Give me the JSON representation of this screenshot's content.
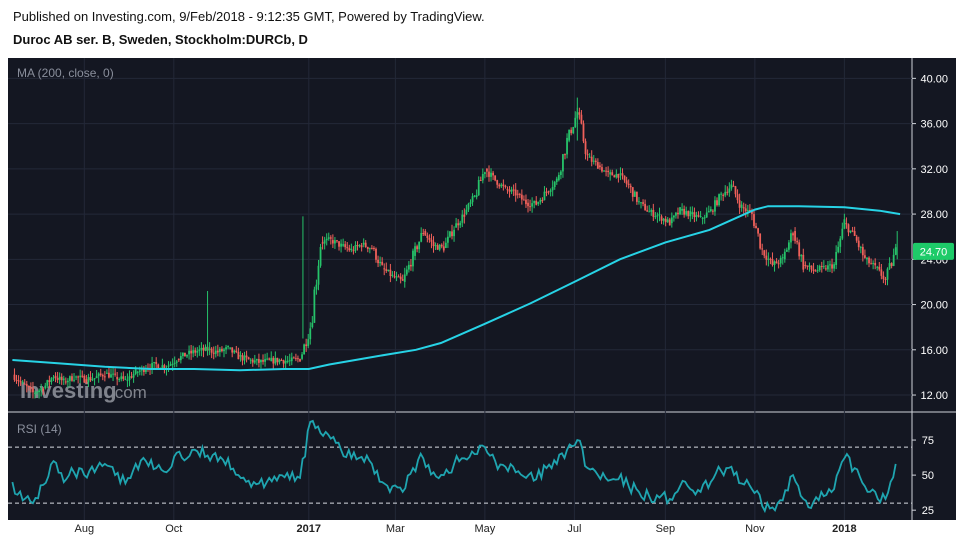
{
  "header": {
    "published_line": "Published on Investing.com, 9/Feb/2018 - 9:12:35 GMT, Powered by TradingView.",
    "instrument_line": "Duroc AB ser. B, Sweden, Stockholm:DURCb, D"
  },
  "watermark": {
    "brand": "Investing",
    "suffix": ".com"
  },
  "colors": {
    "background": "#141722",
    "up_candle": "#26c36a",
    "down_candle": "#f0605a",
    "ma_line": "#27d3e6",
    "rsi_line": "#1fa5b0",
    "price_badge": "#1ecb69",
    "grid": "#232838"
  },
  "chart_data": [
    {
      "type": "candlestick",
      "title": "MA (200, close, 0)",
      "series": [
        {
          "name": "Price",
          "points": [
            [
              "2016-06-13",
              13.8
            ],
            [
              "2016-06-20",
              13.0
            ],
            [
              "2016-06-27",
              12.2
            ],
            [
              "2016-07-04",
              12.6
            ],
            [
              "2016-07-11",
              13.7
            ],
            [
              "2016-07-18",
              13.2
            ],
            [
              "2016-07-25",
              13.6
            ],
            [
              "2016-08-01",
              13.4
            ],
            [
              "2016-08-08",
              13.5
            ],
            [
              "2016-08-15",
              13.9
            ],
            [
              "2016-08-22",
              13.6
            ],
            [
              "2016-08-29",
              13.3
            ],
            [
              "2016-09-05",
              14.0
            ],
            [
              "2016-09-12",
              14.4
            ],
            [
              "2016-09-19",
              14.7
            ],
            [
              "2016-09-26",
              14.5
            ],
            [
              "2016-10-03",
              15.2
            ],
            [
              "2016-10-10",
              15.6
            ],
            [
              "2016-10-17",
              15.9
            ],
            [
              "2016-10-24",
              16.0
            ],
            [
              "2016-10-31",
              15.8
            ],
            [
              "2016-11-07",
              16.1
            ],
            [
              "2016-11-14",
              15.4
            ],
            [
              "2016-11-21",
              15.1
            ],
            [
              "2016-11-28",
              14.9
            ],
            [
              "2016-12-05",
              15.0
            ],
            [
              "2016-12-12",
              15.1
            ],
            [
              "2016-12-19",
              15.0
            ],
            [
              "2016-12-26",
              15.2
            ],
            [
              "2017-01-02",
              18.0
            ],
            [
              "2017-01-09",
              25.5
            ],
            [
              "2017-01-16",
              25.7
            ],
            [
              "2017-01-23",
              25.2
            ],
            [
              "2017-01-30",
              24.8
            ],
            [
              "2017-02-06",
              25.3
            ],
            [
              "2017-02-13",
              25.0
            ],
            [
              "2017-02-20",
              23.2
            ],
            [
              "2017-02-27",
              22.5
            ],
            [
              "2017-03-06",
              22.0
            ],
            [
              "2017-03-13",
              24.3
            ],
            [
              "2017-03-20",
              26.5
            ],
            [
              "2017-03-27",
              25.2
            ],
            [
              "2017-04-03",
              25.0
            ],
            [
              "2017-04-10",
              26.8
            ],
            [
              "2017-04-17",
              28.0
            ],
            [
              "2017-04-24",
              29.5
            ],
            [
              "2017-05-01",
              32.0
            ],
            [
              "2017-05-08",
              31.0
            ],
            [
              "2017-05-15",
              30.2
            ],
            [
              "2017-05-22",
              29.8
            ],
            [
              "2017-05-29",
              29.0
            ],
            [
              "2017-06-05",
              28.9
            ],
            [
              "2017-06-12",
              30.0
            ],
            [
              "2017-06-19",
              31.0
            ],
            [
              "2017-06-26",
              34.5
            ],
            [
              "2017-07-03",
              37.0
            ],
            [
              "2017-07-10",
              33.0
            ],
            [
              "2017-07-17",
              32.3
            ],
            [
              "2017-07-24",
              31.5
            ],
            [
              "2017-07-31",
              31.5
            ],
            [
              "2017-08-07",
              30.5
            ],
            [
              "2017-08-14",
              29.0
            ],
            [
              "2017-08-21",
              28.2
            ],
            [
              "2017-08-28",
              27.8
            ],
            [
              "2017-09-04",
              27.2
            ],
            [
              "2017-09-11",
              28.3
            ],
            [
              "2017-09-18",
              28.0
            ],
            [
              "2017-09-25",
              27.6
            ],
            [
              "2017-10-02",
              28.3
            ],
            [
              "2017-10-09",
              29.7
            ],
            [
              "2017-10-16",
              30.5
            ],
            [
              "2017-10-23",
              28.6
            ],
            [
              "2017-10-30",
              28.0
            ],
            [
              "2017-11-06",
              24.8
            ],
            [
              "2017-11-13",
              23.5
            ],
            [
              "2017-11-20",
              24.0
            ],
            [
              "2017-11-27",
              26.5
            ],
            [
              "2017-12-04",
              23.5
            ],
            [
              "2017-12-11",
              23.0
            ],
            [
              "2017-12-18",
              23.2
            ],
            [
              "2017-12-25",
              23.5
            ],
            [
              "2018-01-01",
              27.2
            ],
            [
              "2018-01-08",
              26.0
            ],
            [
              "2018-01-15",
              24.0
            ],
            [
              "2018-01-22",
              23.3
            ],
            [
              "2018-01-29",
              22.2
            ],
            [
              "2018-02-05",
              24.7
            ]
          ]
        },
        {
          "name": "MA (200, close, 0)",
          "points": [
            [
              "2016-06-13",
              15.1
            ],
            [
              "2016-07-15",
              14.8
            ],
            [
              "2016-08-15",
              14.5
            ],
            [
              "2016-09-15",
              14.3
            ],
            [
              "2016-10-15",
              14.3
            ],
            [
              "2016-11-15",
              14.2
            ],
            [
              "2016-12-15",
              14.3
            ],
            [
              "2017-01-01",
              14.3
            ],
            [
              "2017-01-15",
              14.7
            ],
            [
              "2017-02-15",
              15.4
            ],
            [
              "2017-03-15",
              16.0
            ],
            [
              "2017-04-01",
              16.6
            ],
            [
              "2017-05-01",
              18.3
            ],
            [
              "2017-06-01",
              20.1
            ],
            [
              "2017-07-01",
              22.0
            ],
            [
              "2017-08-01",
              24.0
            ],
            [
              "2017-09-01",
              25.5
            ],
            [
              "2017-10-01",
              26.6
            ],
            [
              "2017-11-01",
              28.4
            ],
            [
              "2017-11-10",
              28.7
            ],
            [
              "2017-12-01",
              28.7
            ],
            [
              "2018-01-01",
              28.6
            ],
            [
              "2018-01-25",
              28.3
            ],
            [
              "2018-02-08",
              28.0
            ]
          ]
        }
      ],
      "last_price": "24.70",
      "y_ticks": [
        "40.00",
        "36.00",
        "32.00",
        "28.00",
        "24.00",
        "20.00",
        "16.00",
        "12.00"
      ],
      "ylim": [
        10.5,
        41.8
      ],
      "x_ticks": [
        "Aug",
        "Oct",
        "2017",
        "Mar",
        "May",
        "Jul",
        "Sep",
        "Nov",
        "2018"
      ],
      "x_tick_dates": [
        "2016-08-01",
        "2016-10-01",
        "2017-01-01",
        "2017-03-01",
        "2017-05-01",
        "2017-07-01",
        "2017-09-01",
        "2017-11-01",
        "2018-01-01"
      ],
      "grid": true
    },
    {
      "type": "line",
      "title": "RSI (14)",
      "series": [
        {
          "name": "RSI (14)",
          "points": [
            [
              "2016-06-13",
              45
            ],
            [
              "2016-06-20",
              32
            ],
            [
              "2016-06-27",
              30
            ],
            [
              "2016-07-04",
              43
            ],
            [
              "2016-07-11",
              60
            ],
            [
              "2016-07-18",
              45
            ],
            [
              "2016-07-25",
              52
            ],
            [
              "2016-08-01",
              50
            ],
            [
              "2016-08-08",
              52
            ],
            [
              "2016-08-15",
              58
            ],
            [
              "2016-08-22",
              50
            ],
            [
              "2016-08-29",
              44
            ],
            [
              "2016-09-05",
              58
            ],
            [
              "2016-09-12",
              60
            ],
            [
              "2016-09-19",
              55
            ],
            [
              "2016-09-26",
              52
            ],
            [
              "2016-10-03",
              66
            ],
            [
              "2016-10-10",
              62
            ],
            [
              "2016-10-17",
              67
            ],
            [
              "2016-10-24",
              64
            ],
            [
              "2016-10-31",
              60
            ],
            [
              "2016-11-07",
              62
            ],
            [
              "2016-11-14",
              50
            ],
            [
              "2016-11-21",
              46
            ],
            [
              "2016-11-28",
              44
            ],
            [
              "2016-12-05",
              48
            ],
            [
              "2016-12-12",
              50
            ],
            [
              "2016-12-19",
              47
            ],
            [
              "2016-12-26",
              48
            ],
            [
              "2017-01-02",
              88
            ],
            [
              "2017-01-09",
              80
            ],
            [
              "2017-01-16",
              76
            ],
            [
              "2017-01-23",
              68
            ],
            [
              "2017-01-30",
              62
            ],
            [
              "2017-02-06",
              63
            ],
            [
              "2017-02-13",
              58
            ],
            [
              "2017-02-20",
              45
            ],
            [
              "2017-02-27",
              42
            ],
            [
              "2017-03-06",
              38
            ],
            [
              "2017-03-13",
              55
            ],
            [
              "2017-03-20",
              62
            ],
            [
              "2017-03-27",
              52
            ],
            [
              "2017-04-03",
              50
            ],
            [
              "2017-04-10",
              58
            ],
            [
              "2017-04-17",
              62
            ],
            [
              "2017-04-24",
              65
            ],
            [
              "2017-05-01",
              70
            ],
            [
              "2017-05-08",
              60
            ],
            [
              "2017-05-15",
              56
            ],
            [
              "2017-05-22",
              52
            ],
            [
              "2017-05-29",
              48
            ],
            [
              "2017-06-05",
              47
            ],
            [
              "2017-06-12",
              55
            ],
            [
              "2017-06-19",
              58
            ],
            [
              "2017-06-26",
              68
            ],
            [
              "2017-07-03",
              75
            ],
            [
              "2017-07-10",
              55
            ],
            [
              "2017-07-17",
              50
            ],
            [
              "2017-07-24",
              46
            ],
            [
              "2017-07-31",
              47
            ],
            [
              "2017-08-07",
              42
            ],
            [
              "2017-08-14",
              38
            ],
            [
              "2017-08-21",
              35
            ],
            [
              "2017-08-28",
              34
            ],
            [
              "2017-09-04",
              33
            ],
            [
              "2017-09-11",
              42
            ],
            [
              "2017-09-18",
              40
            ],
            [
              "2017-09-25",
              38
            ],
            [
              "2017-10-02",
              45
            ],
            [
              "2017-10-09",
              53
            ],
            [
              "2017-10-16",
              56
            ],
            [
              "2017-10-23",
              44
            ],
            [
              "2017-10-30",
              40
            ],
            [
              "2017-11-06",
              28
            ],
            [
              "2017-11-13",
              27
            ],
            [
              "2017-11-20",
              32
            ],
            [
              "2017-11-27",
              50
            ],
            [
              "2017-12-04",
              33
            ],
            [
              "2017-12-11",
              31
            ],
            [
              "2017-12-18",
              35
            ],
            [
              "2017-12-25",
              40
            ],
            [
              "2018-01-01",
              62
            ],
            [
              "2018-01-08",
              55
            ],
            [
              "2018-01-15",
              42
            ],
            [
              "2018-01-22",
              38
            ],
            [
              "2018-01-29",
              33
            ],
            [
              "2018-02-05",
              58
            ]
          ]
        }
      ],
      "y_ticks": [
        "75",
        "50",
        "25"
      ],
      "ylim": [
        18,
        95
      ],
      "reference_lines": [
        70,
        30
      ],
      "x_ticks": [
        "Aug",
        "Oct",
        "2017",
        "Mar",
        "May",
        "Jul",
        "Sep",
        "Nov",
        "2018"
      ]
    }
  ]
}
